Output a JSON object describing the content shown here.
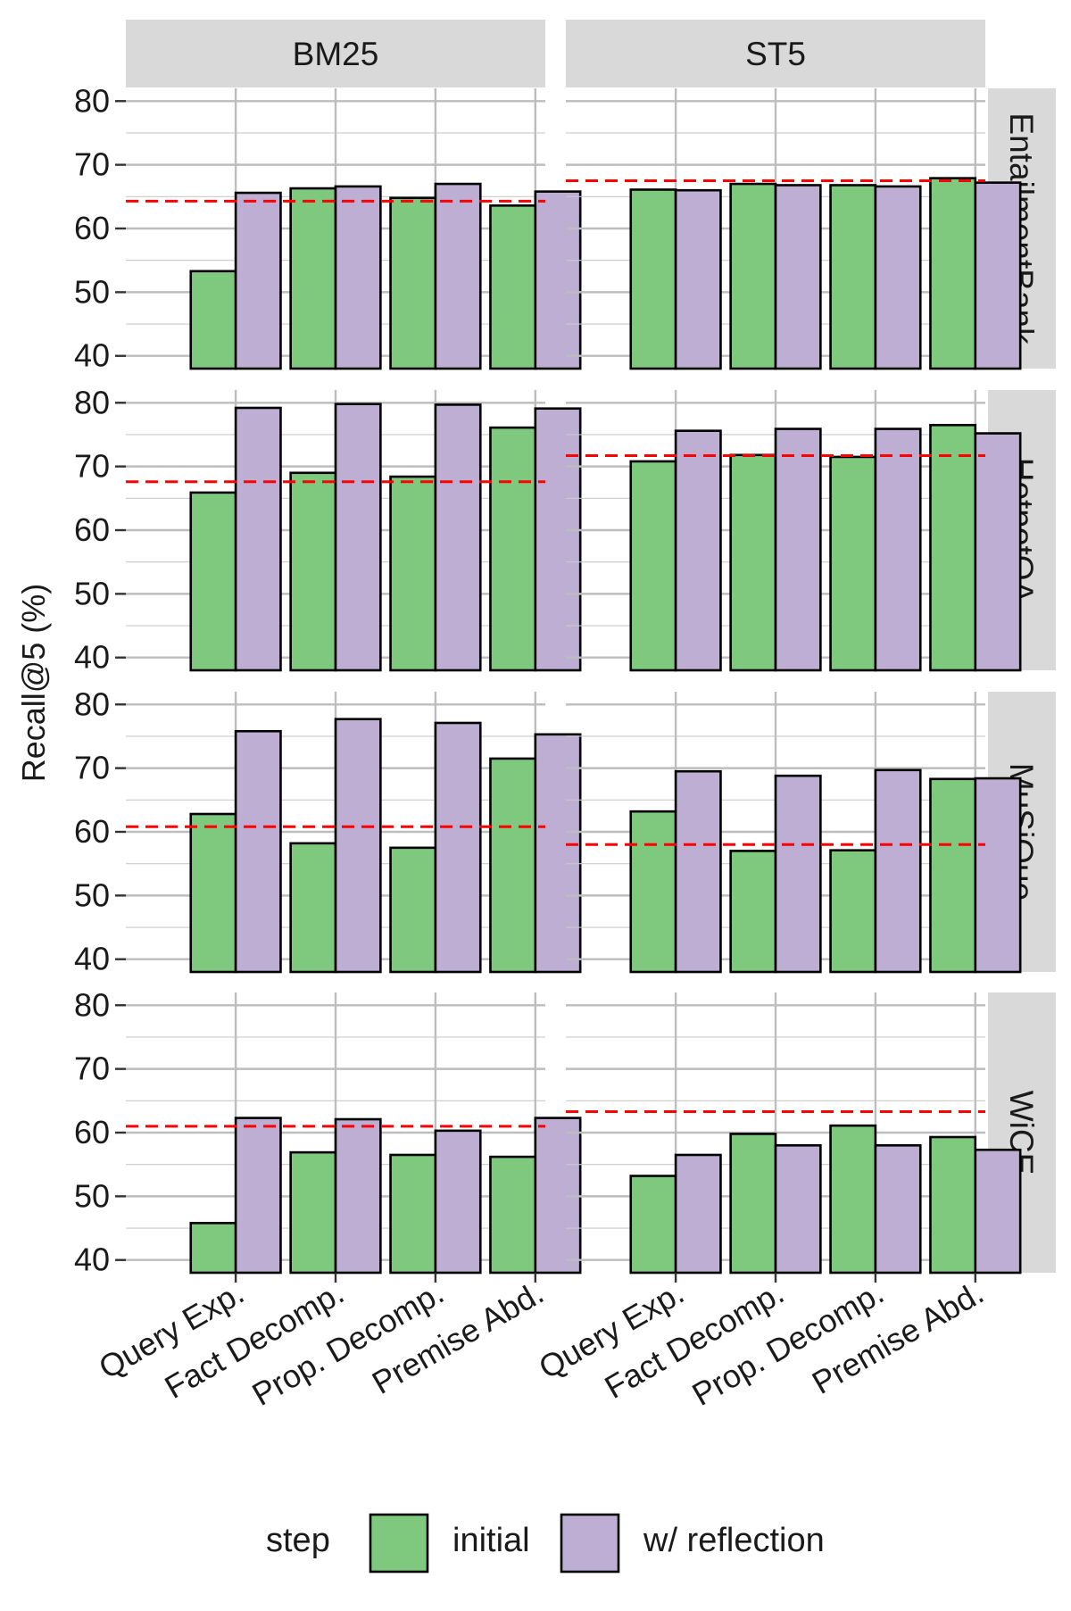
{
  "chart_data": {
    "type": "bar",
    "ylabel": "Recall@5 (%)",
    "ylim": [
      40,
      80
    ],
    "yticks": [
      40,
      50,
      60,
      70,
      80
    ],
    "categories": [
      "Query Exp.",
      "Fact Decomp.",
      "Prop. Decomp.",
      "Premise Abd."
    ],
    "columns": [
      "BM25",
      "ST5"
    ],
    "rows": [
      "EntailmentBank",
      "HotpotQA",
      "MuSiQue",
      "WiCE"
    ],
    "legend": {
      "title": "step",
      "items": [
        {
          "label": "initial",
          "color": "#7fc97f"
        },
        {
          "label": "w/ reflection",
          "color": "#beaed4"
        }
      ]
    },
    "baseline_color": "#ff0000",
    "panels": [
      {
        "row": "EntailmentBank",
        "column": "BM25",
        "baseline": 64.3,
        "series": [
          {
            "name": "initial",
            "values": [
              53.3,
              66.3,
              64.8,
              63.6
            ]
          },
          {
            "name": "w/ reflection",
            "values": [
              65.6,
              66.6,
              67.0,
              65.8
            ]
          }
        ]
      },
      {
        "row": "EntailmentBank",
        "column": "ST5",
        "baseline": 67.5,
        "series": [
          {
            "name": "initial",
            "values": [
              66.1,
              67.0,
              66.8,
              67.9
            ]
          },
          {
            "name": "w/ reflection",
            "values": [
              66.0,
              66.8,
              66.6,
              67.2
            ]
          }
        ]
      },
      {
        "row": "HotpotQA",
        "column": "BM25",
        "baseline": 67.6,
        "series": [
          {
            "name": "initial",
            "values": [
              65.9,
              69.0,
              68.4,
              76.1
            ]
          },
          {
            "name": "w/ reflection",
            "values": [
              79.2,
              79.8,
              79.7,
              79.1
            ]
          }
        ]
      },
      {
        "row": "HotpotQA",
        "column": "ST5",
        "baseline": 71.7,
        "series": [
          {
            "name": "initial",
            "values": [
              70.8,
              71.8,
              71.5,
              76.5
            ]
          },
          {
            "name": "w/ reflection",
            "values": [
              75.6,
              75.9,
              75.9,
              75.2
            ]
          }
        ]
      },
      {
        "row": "MuSiQue",
        "column": "BM25",
        "baseline": 60.8,
        "series": [
          {
            "name": "initial",
            "values": [
              62.8,
              58.2,
              57.5,
              71.5
            ]
          },
          {
            "name": "w/ reflection",
            "values": [
              75.8,
              77.7,
              77.1,
              75.3
            ]
          }
        ]
      },
      {
        "row": "MuSiQue",
        "column": "ST5",
        "baseline": 58.0,
        "series": [
          {
            "name": "initial",
            "values": [
              63.2,
              57.0,
              57.1,
              68.3
            ]
          },
          {
            "name": "w/ reflection",
            "values": [
              69.5,
              68.8,
              69.7,
              68.4
            ]
          }
        ]
      },
      {
        "row": "WiCE",
        "column": "BM25",
        "baseline": 61.0,
        "series": [
          {
            "name": "initial",
            "values": [
              45.8,
              56.9,
              56.5,
              56.2
            ]
          },
          {
            "name": "w/ reflection",
            "values": [
              62.3,
              62.1,
              60.3,
              62.3
            ]
          }
        ]
      },
      {
        "row": "WiCE",
        "column": "ST5",
        "baseline": 63.3,
        "series": [
          {
            "name": "initial",
            "values": [
              53.2,
              59.8,
              61.1,
              59.3
            ]
          },
          {
            "name": "w/ reflection",
            "values": [
              56.5,
              58.0,
              58.0,
              57.3
            ]
          }
        ]
      }
    ]
  }
}
